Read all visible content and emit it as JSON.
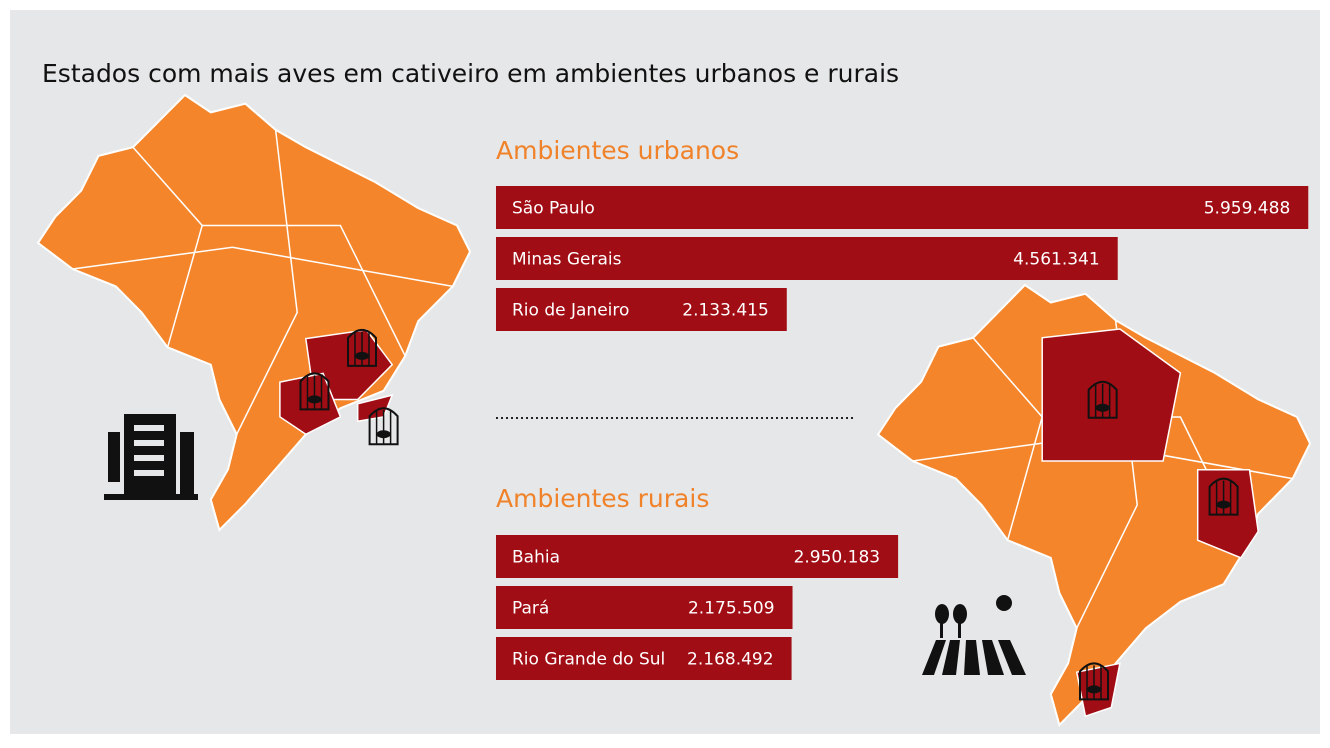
{
  "title": "Estados com mais aves em cativeiro em ambientes urbanos e rurais",
  "chart_data": [
    {
      "type": "bar",
      "title": "Ambientes urbanos",
      "color": "#a00d14",
      "categories": [
        "São Paulo",
        "Minas Gerais",
        "Rio de Janeiro"
      ],
      "values": [
        5959488,
        4561341,
        2133415
      ],
      "value_labels": [
        "5.959.488",
        "4.561.341",
        "2.133.415"
      ]
    },
    {
      "type": "bar",
      "title": "Ambientes rurais",
      "color": "#a00d14",
      "categories": [
        "Bahia",
        "Pará",
        "Rio Grande do Sul"
      ],
      "values": [
        2950183,
        2175509,
        2168492
      ],
      "value_labels": [
        "2.950.183",
        "2.175.509",
        "2.168.492"
      ]
    }
  ]
}
